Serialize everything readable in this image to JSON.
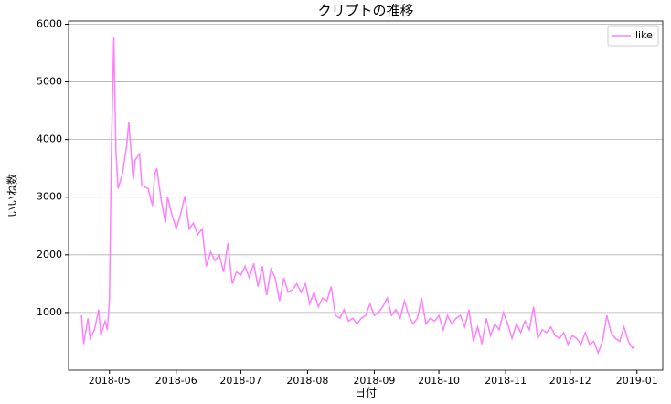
{
  "chart_data": {
    "type": "line",
    "title": "クリプトの推移",
    "x_label": "日付",
    "y_label": "いいね数",
    "x": [
      "2018-04-18",
      "2018-04-19",
      "2018-04-21",
      "2018-04-22",
      "2018-04-24",
      "2018-04-26",
      "2018-04-27",
      "2018-04-29",
      "2018-04-30",
      "2018-05-01",
      "2018-05-02",
      "2018-05-03",
      "2018-05-04",
      "2018-05-05",
      "2018-05-07",
      "2018-05-09",
      "2018-05-10",
      "2018-05-12",
      "2018-05-13",
      "2018-05-15",
      "2018-05-16",
      "2018-05-19",
      "2018-05-21",
      "2018-05-22",
      "2018-05-23",
      "2018-05-25",
      "2018-05-27",
      "2018-05-28",
      "2018-05-30",
      "2018-06-01",
      "2018-06-03",
      "2018-06-05",
      "2018-06-07",
      "2018-06-09",
      "2018-06-11",
      "2018-06-13",
      "2018-06-15",
      "2018-06-17",
      "2018-06-19",
      "2018-06-21",
      "2018-06-23",
      "2018-06-25",
      "2018-06-27",
      "2018-06-29",
      "2018-07-01",
      "2018-07-03",
      "2018-07-05",
      "2018-07-07",
      "2018-07-09",
      "2018-07-11",
      "2018-07-13",
      "2018-07-15",
      "2018-07-17",
      "2018-07-19",
      "2018-07-21",
      "2018-07-23",
      "2018-07-25",
      "2018-07-27",
      "2018-07-29",
      "2018-07-31",
      "2018-08-02",
      "2018-08-04",
      "2018-08-06",
      "2018-08-08",
      "2018-08-10",
      "2018-08-12",
      "2018-08-14",
      "2018-08-16",
      "2018-08-18",
      "2018-08-20",
      "2018-08-22",
      "2018-08-24",
      "2018-08-26",
      "2018-08-28",
      "2018-08-30",
      "2018-09-01",
      "2018-09-03",
      "2018-09-05",
      "2018-09-07",
      "2018-09-09",
      "2018-09-11",
      "2018-09-13",
      "2018-09-15",
      "2018-09-17",
      "2018-09-19",
      "2018-09-21",
      "2018-09-23",
      "2018-09-25",
      "2018-09-27",
      "2018-09-29",
      "2018-10-01",
      "2018-10-03",
      "2018-10-05",
      "2018-10-07",
      "2018-10-09",
      "2018-10-11",
      "2018-10-13",
      "2018-10-15",
      "2018-10-17",
      "2018-10-19",
      "2018-10-21",
      "2018-10-23",
      "2018-10-25",
      "2018-10-27",
      "2018-10-29",
      "2018-10-31",
      "2018-11-02",
      "2018-11-04",
      "2018-11-06",
      "2018-11-08",
      "2018-11-10",
      "2018-11-12",
      "2018-11-14",
      "2018-11-16",
      "2018-11-18",
      "2018-11-20",
      "2018-11-22",
      "2018-11-24",
      "2018-11-26",
      "2018-11-28",
      "2018-11-30",
      "2018-12-02",
      "2018-12-04",
      "2018-12-06",
      "2018-12-08",
      "2018-12-10",
      "2018-12-12",
      "2018-12-14",
      "2018-12-16",
      "2018-12-18",
      "2018-12-20",
      "2018-12-22",
      "2018-12-24",
      "2018-12-26",
      "2018-12-28",
      "2018-12-30",
      "2018-12-31"
    ],
    "series": [
      {
        "name": "like",
        "color": "#ff80ff",
        "values": [
          950,
          450,
          900,
          550,
          700,
          1050,
          600,
          850,
          700,
          1200,
          4000,
          5780,
          3800,
          3150,
          3400,
          3900,
          4300,
          3300,
          3650,
          3750,
          3200,
          3150,
          2850,
          3400,
          3500,
          2950,
          2550,
          3000,
          2700,
          2450,
          2700,
          3020,
          2450,
          2550,
          2350,
          2450,
          1800,
          2050,
          1900,
          2000,
          1700,
          2200,
          1500,
          1700,
          1650,
          1800,
          1600,
          1850,
          1450,
          1800,
          1300,
          1750,
          1600,
          1200,
          1600,
          1350,
          1400,
          1500,
          1350,
          1500,
          1150,
          1350,
          1100,
          1250,
          1200,
          1450,
          950,
          900,
          1050,
          850,
          900,
          800,
          900,
          950,
          1150,
          950,
          1000,
          1100,
          1250,
          950,
          1050,
          900,
          1200,
          950,
          800,
          900,
          1250,
          800,
          900,
          850,
          950,
          700,
          950,
          800,
          900,
          950,
          750,
          1050,
          500,
          750,
          450,
          900,
          600,
          800,
          700,
          1000,
          800,
          550,
          800,
          650,
          850,
          700,
          1100,
          550,
          700,
          650,
          750,
          600,
          550,
          650,
          450,
          600,
          550,
          450,
          650,
          450,
          500,
          300,
          500,
          950,
          650,
          550,
          500,
          750,
          500,
          380,
          420
        ]
      }
    ],
    "xlim": [
      "2018-04-12",
      "2019-01-13"
    ],
    "xticks": [
      {
        "value": "2018-05-01",
        "label": "2018-05"
      },
      {
        "value": "2018-06-01",
        "label": "2018-06"
      },
      {
        "value": "2018-07-01",
        "label": "2018-07"
      },
      {
        "value": "2018-08-01",
        "label": "2018-08"
      },
      {
        "value": "2018-09-01",
        "label": "2018-09"
      },
      {
        "value": "2018-10-01",
        "label": "2018-10"
      },
      {
        "value": "2018-11-01",
        "label": "2018-11"
      },
      {
        "value": "2018-12-01",
        "label": "2018-12"
      },
      {
        "value": "2019-01-01",
        "label": "2019-01"
      }
    ],
    "ylim": [
      0,
      6055
    ],
    "yticks": [
      1000,
      2000,
      3000,
      4000,
      5000,
      6000
    ],
    "grid": "y",
    "legend": "upper right"
  }
}
